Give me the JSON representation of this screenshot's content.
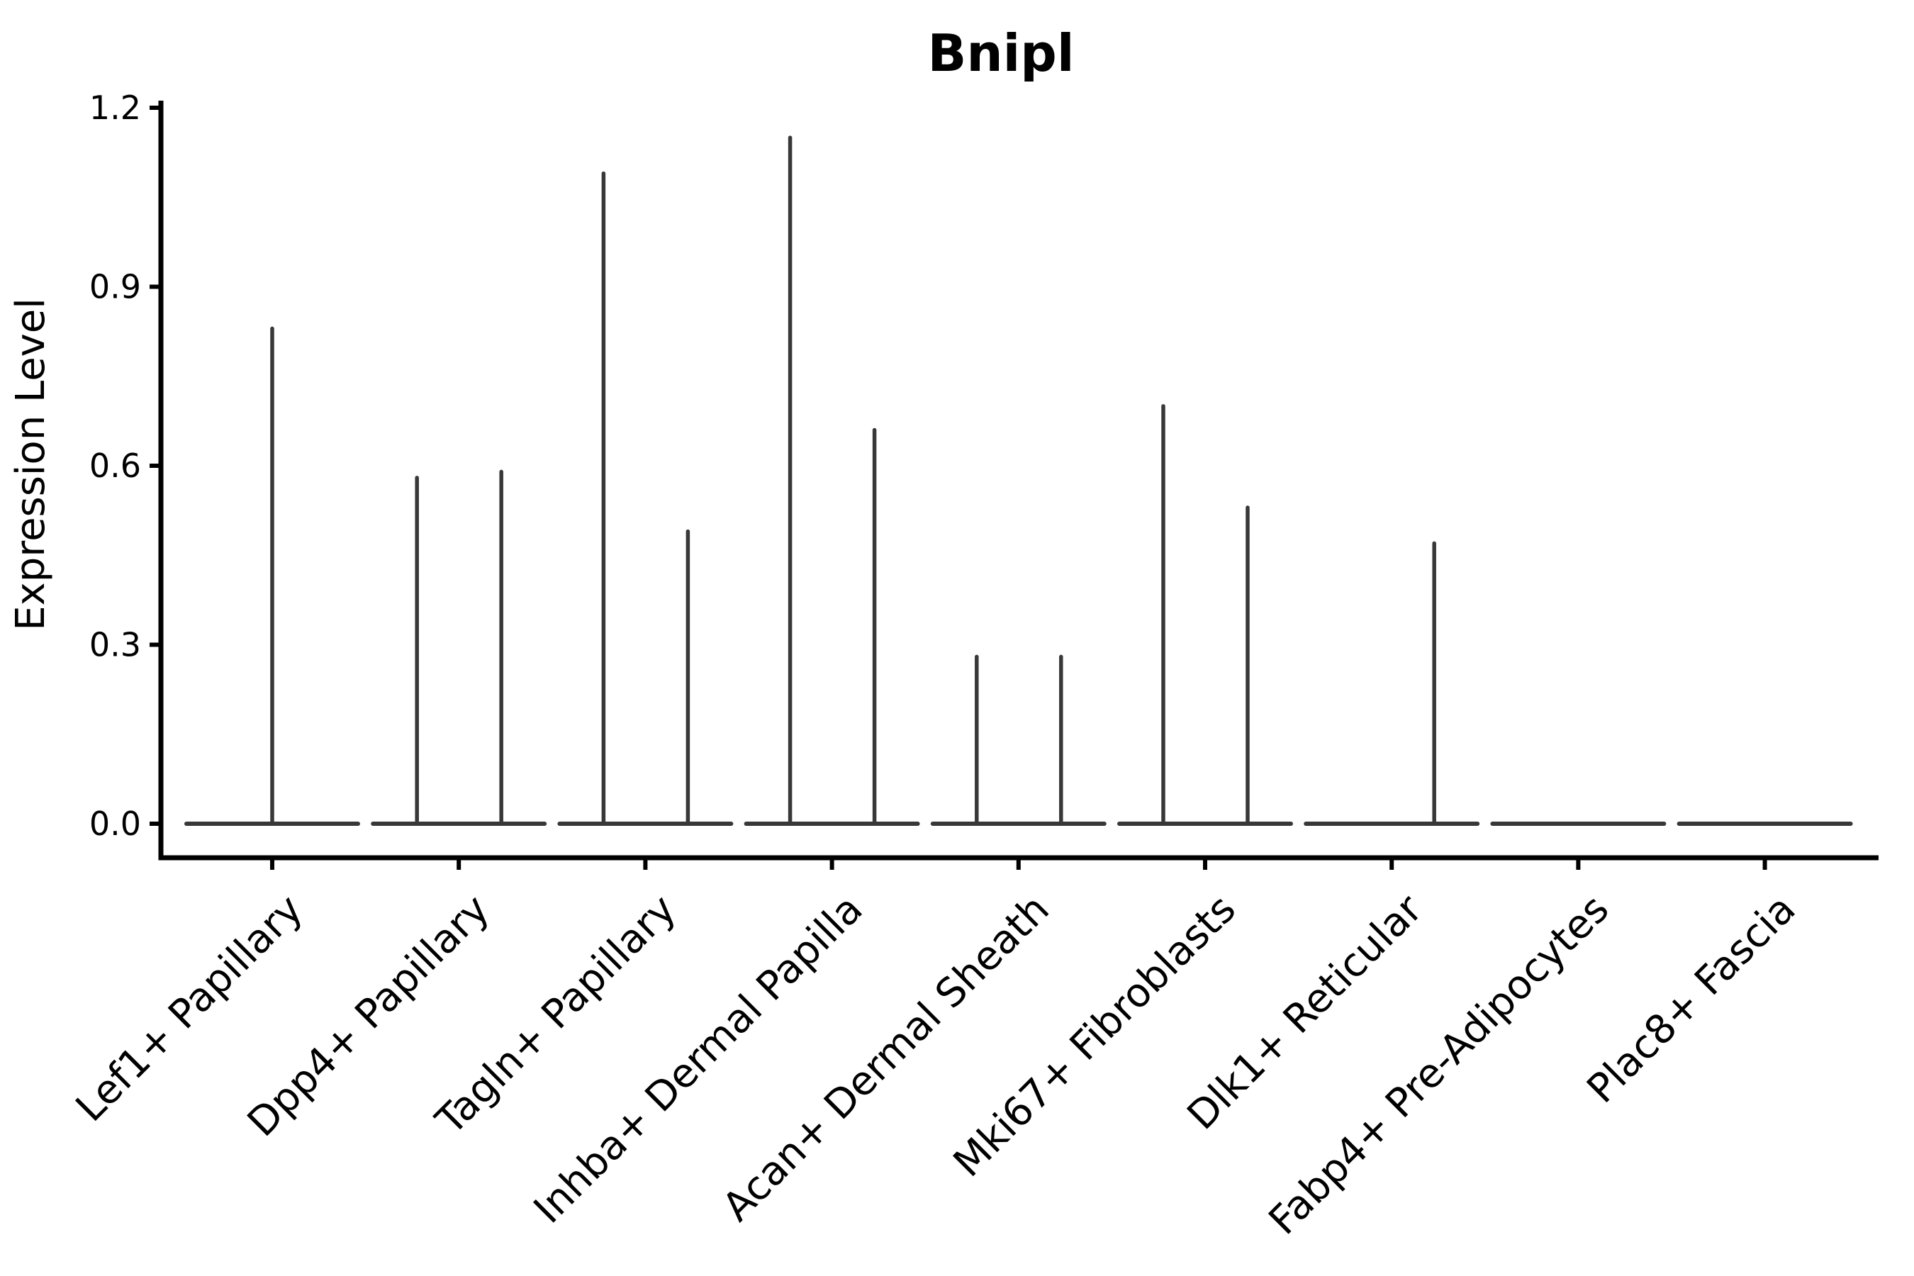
{
  "chart_data": {
    "type": "violin",
    "title": "Bnipl",
    "ylabel": "Expression Level",
    "xlabel": "",
    "ylim": [
      0,
      1.2
    ],
    "yticks": [
      0,
      0.3,
      0.6,
      0.9,
      1.2
    ],
    "grid": false,
    "legend": "none",
    "violin_color": "#383838",
    "axis_color": "#000000",
    "background_color": "#ffffff",
    "categories": [
      "Lef1+ Papillary",
      "Dpp4+ Papillary",
      "Tagln+ Papillary",
      "Inhba+ Dermal Papilla",
      "Acan+ Dermal Sheath",
      "Mki67+ Fibroblasts",
      "Dlk1+ Reticular",
      "Fabp4+ Pre-Adipocytes",
      "Plac8+ Fascia"
    ],
    "series": [
      {
        "category": "Lef1+ Papillary",
        "spikes": [
          {
            "position": "center",
            "peak": 0.83
          }
        ]
      },
      {
        "category": "Dpp4+ Papillary",
        "spikes": [
          {
            "position": "left",
            "peak": 0.58
          },
          {
            "position": "right",
            "peak": 0.59
          }
        ]
      },
      {
        "category": "Tagln+ Papillary",
        "spikes": [
          {
            "position": "left",
            "peak": 1.09
          },
          {
            "position": "right",
            "peak": 0.49
          }
        ]
      },
      {
        "category": "Inhba+ Dermal Papilla",
        "spikes": [
          {
            "position": "left",
            "peak": 1.15
          },
          {
            "position": "right",
            "peak": 0.66
          }
        ]
      },
      {
        "category": "Acan+ Dermal Sheath",
        "spikes": [
          {
            "position": "left",
            "peak": 0.28
          },
          {
            "position": "right",
            "peak": 0.28
          }
        ]
      },
      {
        "category": "Mki67+ Fibroblasts",
        "spikes": [
          {
            "position": "left",
            "peak": 0.7
          },
          {
            "position": "right",
            "peak": 0.53
          }
        ]
      },
      {
        "category": "Dlk1+ Reticular",
        "spikes": [
          {
            "position": "right",
            "peak": 0.47
          }
        ]
      },
      {
        "category": "Fabp4+ Pre-Adipocytes",
        "spikes": []
      },
      {
        "category": "Plac8+ Fascia",
        "spikes": []
      }
    ]
  }
}
